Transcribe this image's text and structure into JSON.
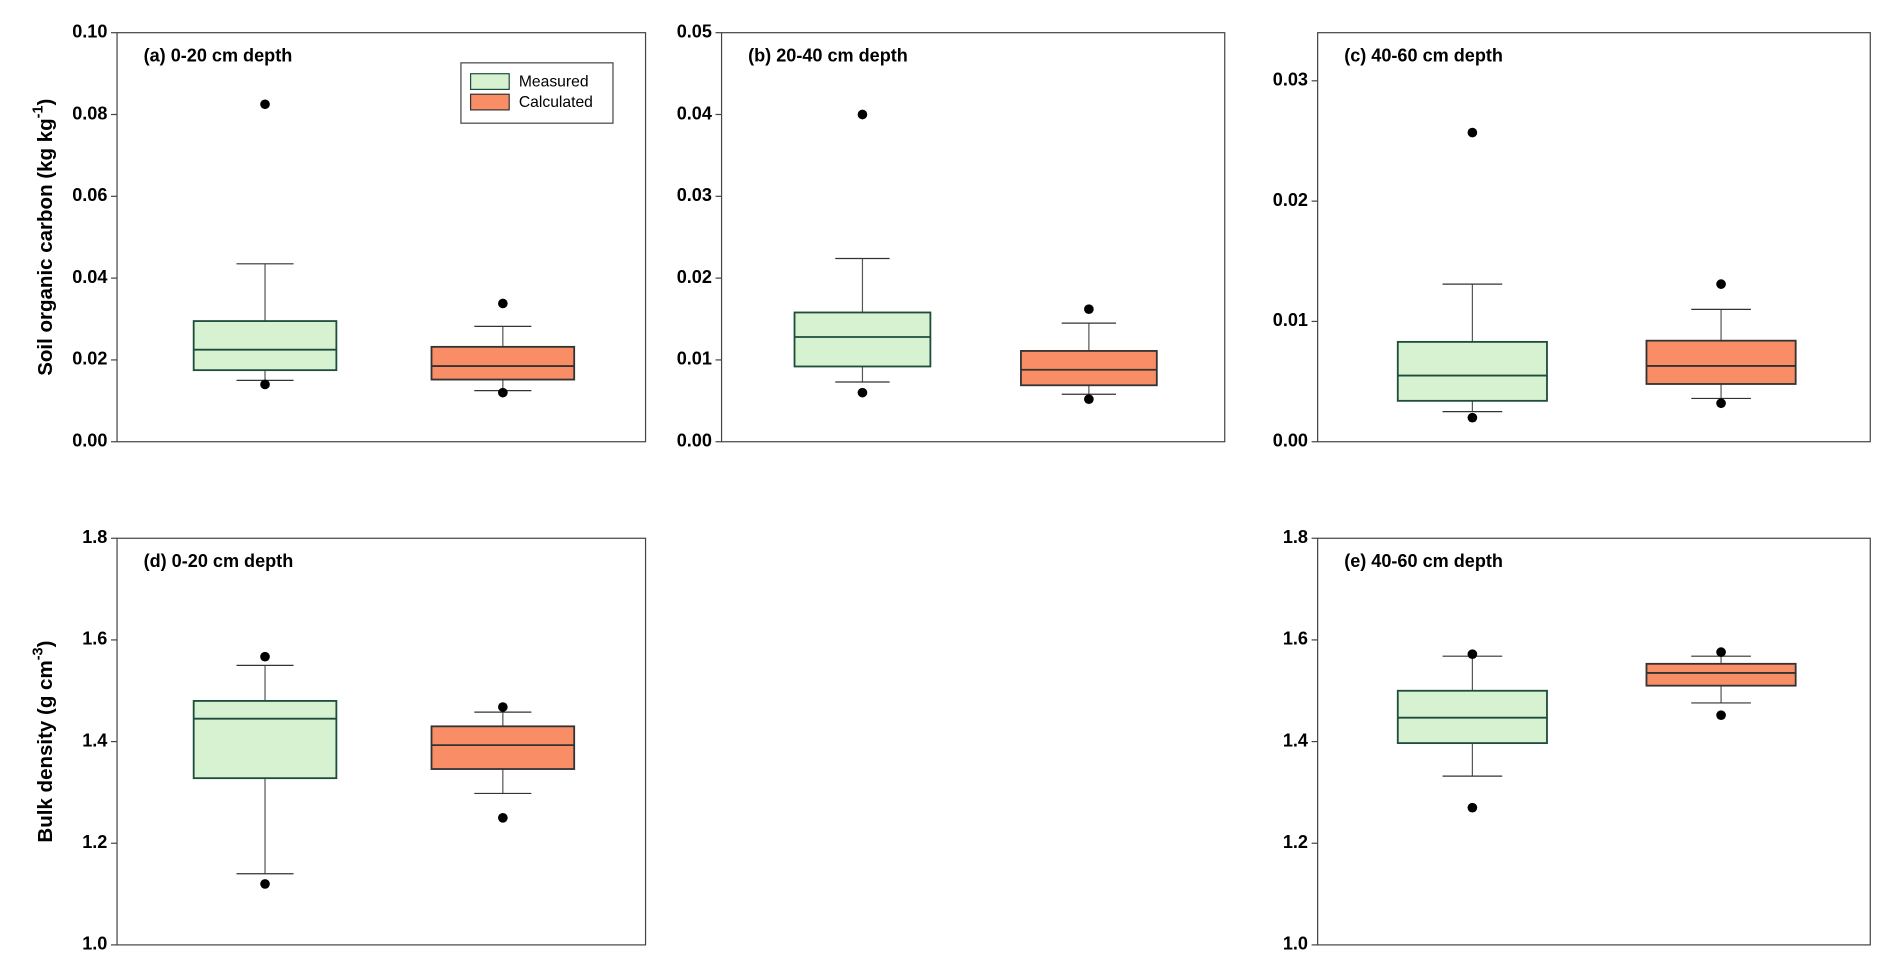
{
  "chart_data": [
    {
      "type": "box",
      "title": "(a) 0-20 cm depth",
      "ylabel": {
        "text": "Soil organic carbon (kg kg",
        "sup": "-1",
        "tail": ")"
      },
      "ylim": [
        0,
        0.1
      ],
      "yticks": [
        {
          "value": 0,
          "label": "0.00"
        },
        {
          "value": 0.02,
          "label": "0.02"
        },
        {
          "value": 0.04,
          "label": "0.04"
        },
        {
          "value": 0.06,
          "label": "0.06"
        },
        {
          "value": 0.08,
          "label": "0.08"
        },
        {
          "value": 0.1,
          "label": "0.10"
        }
      ],
      "legend": "upper right",
      "series": [
        {
          "name": "Measured",
          "color": "#d6f2d0",
          "whislo": 0.015,
          "q1": 0.0175,
          "med": 0.0225,
          "q3": 0.0295,
          "whishi": 0.0435,
          "outliers": [
            0.014,
            0.0825
          ]
        },
        {
          "name": "Calculated",
          "color": "#f98e66",
          "whislo": 0.0125,
          "q1": 0.0152,
          "med": 0.0185,
          "q3": 0.0232,
          "whishi": 0.0282,
          "outliers": [
            0.012,
            0.0338
          ]
        }
      ]
    },
    {
      "type": "box",
      "title": "(b) 20-40 cm depth",
      "ylim": [
        0,
        0.05
      ],
      "yticks": [
        {
          "value": 0,
          "label": "0.00"
        },
        0.01,
        0.02,
        0.03,
        0.04,
        0.05
      ],
      "series": [
        {
          "color": "#d6f2d0",
          "whislo": 0.0073,
          "q1": 0.0092,
          "med": 0.0128,
          "q3": 0.0158,
          "whishi": 0.0224,
          "outliers": [
            0.006,
            0.04
          ]
        },
        {
          "color": "#f98e66",
          "whislo": 0.0058,
          "q1": 0.0069,
          "med": 0.0088,
          "q3": 0.0111,
          "whishi": 0.0145,
          "outliers": [
            0.0052,
            0.0162
          ]
        }
      ]
    },
    {
      "type": "box",
      "title": "(c) 40-60 cm depth",
      "ylim": [
        0,
        0.034
      ],
      "yticks": [
        {
          "value": 0,
          "label": "0.00"
        },
        0.01,
        0.02,
        0.03
      ],
      "series": [
        {
          "color": "#d6f2d0",
          "whislo": 0.0025,
          "q1": 0.0034,
          "med": 0.0055,
          "q3": 0.0083,
          "whishi": 0.0131,
          "outliers": [
            0.002,
            0.0257
          ]
        },
        {
          "color": "#f98e66",
          "whislo": 0.0036,
          "q1": 0.0048,
          "med": 0.0063,
          "q3": 0.0084,
          "whishi": 0.011,
          "outliers": [
            0.0032,
            0.0131
          ]
        }
      ]
    },
    {
      "type": "box",
      "title": "(d) 0-20 cm depth",
      "ylabel": {
        "text": "Bulk density (g cm",
        "sup": "-3",
        "tail": ")"
      },
      "ylim": [
        1.0,
        1.8
      ],
      "yticks": [
        {
          "value": 1.0,
          "label": "1.0"
        },
        1.2,
        1.4,
        1.6,
        1.8
      ],
      "series": [
        {
          "color": "#d6f2d0",
          "whislo": 1.14,
          "q1": 1.328,
          "med": 1.445,
          "q3": 1.48,
          "whishi": 1.55,
          "outliers": [
            1.12,
            1.567
          ]
        },
        {
          "color": "#f98e66",
          "whislo": 1.298,
          "q1": 1.346,
          "med": 1.393,
          "q3": 1.43,
          "whishi": 1.458,
          "outliers": [
            1.25,
            1.468
          ]
        }
      ]
    },
    {
      "type": "box",
      "title": "(e) 40-60 cm depth",
      "ylim": [
        1.0,
        1.8
      ],
      "yticks": [
        {
          "value": 1.0,
          "label": "1.0"
        },
        1.2,
        1.4,
        1.6,
        1.8
      ],
      "series": [
        {
          "color": "#d6f2d0",
          "whislo": 1.332,
          "q1": 1.397,
          "med": 1.447,
          "q3": 1.5,
          "whishi": 1.568,
          "outliers": [
            1.27,
            1.572
          ]
        },
        {
          "color": "#f98e66",
          "whislo": 1.476,
          "q1": 1.51,
          "med": 1.535,
          "q3": 1.553,
          "whishi": 1.568,
          "outliers": [
            1.452,
            1.576
          ]
        }
      ]
    }
  ]
}
